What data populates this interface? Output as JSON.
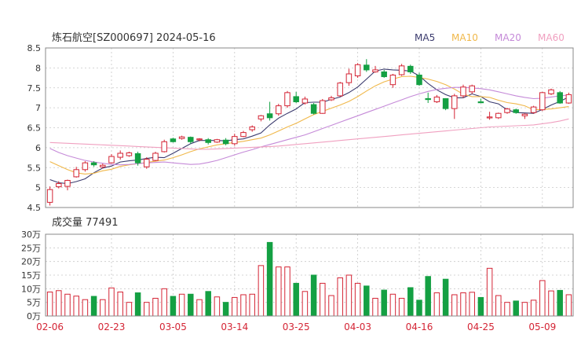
{
  "header": {
    "title": "炼石航空[SZ000697] 2024-05-16",
    "legend": [
      {
        "label": "MA5",
        "color": "#3b3b6e"
      },
      {
        "label": "MA10",
        "color": "#f0b84a"
      },
      {
        "label": "MA20",
        "color": "#c58ad8"
      },
      {
        "label": "MA60",
        "color": "#f0a0c0"
      }
    ]
  },
  "volume_label": "成交量 77491",
  "colors": {
    "up": "#d42535",
    "down": "#14a043",
    "grid": "#c8c8c8",
    "axis": "#333333",
    "date": "#d42535"
  },
  "chart_data": [
    {
      "type": "candlestick",
      "ylim": [
        4.5,
        8.5
      ],
      "y_ticks": [
        "8.5",
        "8",
        "7.5",
        "7",
        "6.5",
        "6",
        "5.5",
        "5",
        "4.5"
      ],
      "x_tick_labels": [
        {
          "index": 0,
          "label": "02-06"
        },
        {
          "index": 7,
          "label": "02-23"
        },
        {
          "index": 14,
          "label": "03-05"
        },
        {
          "index": 21,
          "label": "03-14"
        },
        {
          "index": 28,
          "label": "03-25"
        },
        {
          "index": 35,
          "label": "04-03"
        },
        {
          "index": 42,
          "label": "04-16"
        },
        {
          "index": 49,
          "label": "04-25"
        },
        {
          "index": 56,
          "label": "05-09"
        }
      ],
      "candles": [
        {
          "o": 4.63,
          "h": 5.03,
          "l": 4.55,
          "c": 4.95,
          "d": "up"
        },
        {
          "o": 5.02,
          "h": 5.16,
          "l": 4.98,
          "c": 5.1,
          "d": "up"
        },
        {
          "o": 5.03,
          "h": 5.2,
          "l": 4.93,
          "c": 5.18,
          "d": "up"
        },
        {
          "o": 5.27,
          "h": 5.52,
          "l": 5.25,
          "c": 5.45,
          "d": "up"
        },
        {
          "o": 5.45,
          "h": 5.66,
          "l": 5.4,
          "c": 5.62,
          "d": "up"
        },
        {
          "o": 5.62,
          "h": 5.66,
          "l": 5.52,
          "c": 5.57,
          "d": "down"
        },
        {
          "o": 5.52,
          "h": 5.6,
          "l": 5.48,
          "c": 5.56,
          "d": "up"
        },
        {
          "o": 5.62,
          "h": 5.84,
          "l": 5.6,
          "c": 5.78,
          "d": "up"
        },
        {
          "o": 5.76,
          "h": 5.93,
          "l": 5.7,
          "c": 5.86,
          "d": "up"
        },
        {
          "o": 5.8,
          "h": 5.9,
          "l": 5.77,
          "c": 5.87,
          "d": "up"
        },
        {
          "o": 5.85,
          "h": 5.9,
          "l": 5.55,
          "c": 5.62,
          "d": "down"
        },
        {
          "o": 5.52,
          "h": 5.76,
          "l": 5.47,
          "c": 5.71,
          "d": "up"
        },
        {
          "o": 5.68,
          "h": 5.9,
          "l": 5.66,
          "c": 5.86,
          "d": "up"
        },
        {
          "o": 5.9,
          "h": 6.2,
          "l": 5.88,
          "c": 6.15,
          "d": "up"
        },
        {
          "o": 6.22,
          "h": 6.25,
          "l": 6.13,
          "c": 6.15,
          "d": "down"
        },
        {
          "o": 6.23,
          "h": 6.3,
          "l": 6.2,
          "c": 6.27,
          "d": "up"
        },
        {
          "o": 6.26,
          "h": 6.28,
          "l": 6.1,
          "c": 6.15,
          "d": "down"
        },
        {
          "o": 6.2,
          "h": 6.24,
          "l": 6.16,
          "c": 6.22,
          "d": "up"
        },
        {
          "o": 6.2,
          "h": 6.24,
          "l": 6.08,
          "c": 6.13,
          "d": "down"
        },
        {
          "o": 6.14,
          "h": 6.22,
          "l": 6.12,
          "c": 6.2,
          "d": "up"
        },
        {
          "o": 6.19,
          "h": 6.24,
          "l": 6.06,
          "c": 6.1,
          "d": "down"
        },
        {
          "o": 6.1,
          "h": 6.35,
          "l": 6.05,
          "c": 6.28,
          "d": "up"
        },
        {
          "o": 6.28,
          "h": 6.42,
          "l": 6.26,
          "c": 6.38,
          "d": "up"
        },
        {
          "o": 6.45,
          "h": 6.56,
          "l": 6.4,
          "c": 6.52,
          "d": "up"
        },
        {
          "o": 6.72,
          "h": 6.82,
          "l": 6.66,
          "c": 6.8,
          "d": "up"
        },
        {
          "o": 6.85,
          "h": 7.15,
          "l": 6.68,
          "c": 6.75,
          "d": "down"
        },
        {
          "o": 6.85,
          "h": 7.1,
          "l": 6.8,
          "c": 7.05,
          "d": "up"
        },
        {
          "o": 7.05,
          "h": 7.42,
          "l": 7.0,
          "c": 7.38,
          "d": "up"
        },
        {
          "o": 7.28,
          "h": 7.4,
          "l": 7.12,
          "c": 7.15,
          "d": "down"
        },
        {
          "o": 7.12,
          "h": 7.28,
          "l": 7.08,
          "c": 7.22,
          "d": "up"
        },
        {
          "o": 7.08,
          "h": 7.12,
          "l": 6.83,
          "c": 6.86,
          "d": "down"
        },
        {
          "o": 6.86,
          "h": 7.22,
          "l": 6.85,
          "c": 7.18,
          "d": "up"
        },
        {
          "o": 7.2,
          "h": 7.3,
          "l": 7.17,
          "c": 7.25,
          "d": "up"
        },
        {
          "o": 7.3,
          "h": 7.65,
          "l": 7.28,
          "c": 7.62,
          "d": "up"
        },
        {
          "o": 7.63,
          "h": 7.98,
          "l": 7.55,
          "c": 7.85,
          "d": "up"
        },
        {
          "o": 7.8,
          "h": 8.12,
          "l": 7.75,
          "c": 8.08,
          "d": "up"
        },
        {
          "o": 8.07,
          "h": 8.22,
          "l": 7.9,
          "c": 7.95,
          "d": "down"
        },
        {
          "o": 7.9,
          "h": 8.05,
          "l": 7.88,
          "c": 7.95,
          "d": "up"
        },
        {
          "o": 7.9,
          "h": 7.95,
          "l": 7.75,
          "c": 7.78,
          "d": "down"
        },
        {
          "o": 7.58,
          "h": 7.85,
          "l": 7.5,
          "c": 7.82,
          "d": "up"
        },
        {
          "o": 7.83,
          "h": 8.1,
          "l": 7.8,
          "c": 8.05,
          "d": "up"
        },
        {
          "o": 8.04,
          "h": 8.08,
          "l": 7.85,
          "c": 7.9,
          "d": "down"
        },
        {
          "o": 7.82,
          "h": 7.88,
          "l": 7.55,
          "c": 7.58,
          "d": "down"
        },
        {
          "o": 7.23,
          "h": 7.38,
          "l": 7.12,
          "c": 7.22,
          "d": "down"
        },
        {
          "o": 7.15,
          "h": 7.32,
          "l": 7.12,
          "c": 7.27,
          "d": "up"
        },
        {
          "o": 7.23,
          "h": 7.24,
          "l": 6.94,
          "c": 6.98,
          "d": "down"
        },
        {
          "o": 6.98,
          "h": 7.35,
          "l": 6.72,
          "c": 7.3,
          "d": "up"
        },
        {
          "o": 7.3,
          "h": 7.58,
          "l": 7.25,
          "c": 7.52,
          "d": "up"
        },
        {
          "o": 7.4,
          "h": 7.58,
          "l": 7.35,
          "c": 7.55,
          "d": "up"
        },
        {
          "o": 7.15,
          "h": 7.23,
          "l": 7.12,
          "c": 7.14,
          "d": "down"
        },
        {
          "o": 6.76,
          "h": 6.9,
          "l": 6.7,
          "c": 6.77,
          "d": "up"
        },
        {
          "o": 6.75,
          "h": 6.88,
          "l": 6.72,
          "c": 6.86,
          "d": "up"
        },
        {
          "o": 6.88,
          "h": 7.0,
          "l": 6.85,
          "c": 6.97,
          "d": "up"
        },
        {
          "o": 6.95,
          "h": 6.98,
          "l": 6.85,
          "c": 6.88,
          "d": "down"
        },
        {
          "o": 6.8,
          "h": 6.86,
          "l": 6.72,
          "c": 6.84,
          "d": "up"
        },
        {
          "o": 6.88,
          "h": 7.05,
          "l": 6.85,
          "c": 7.02,
          "d": "up"
        },
        {
          "o": 6.95,
          "h": 7.4,
          "l": 6.92,
          "c": 7.38,
          "d": "up"
        },
        {
          "o": 7.35,
          "h": 7.48,
          "l": 7.32,
          "c": 7.45,
          "d": "up"
        },
        {
          "o": 7.38,
          "h": 7.42,
          "l": 7.1,
          "c": 7.12,
          "d": "down"
        },
        {
          "o": 7.12,
          "h": 7.38,
          "l": 7.1,
          "c": 7.33,
          "d": "up"
        }
      ],
      "series": [
        {
          "name": "MA5",
          "values": [
            5.2,
            5.12,
            5.1,
            5.15,
            5.22,
            5.37,
            5.49,
            5.54,
            5.64,
            5.67,
            5.69,
            5.73,
            5.76,
            5.75,
            5.86,
            5.98,
            6.1,
            6.18,
            6.18,
            6.18,
            6.17,
            6.2,
            6.22,
            6.29,
            6.37,
            6.57,
            6.74,
            6.86,
            6.97,
            7.13,
            7.14,
            7.14,
            7.21,
            7.27,
            7.38,
            7.52,
            7.72,
            7.92,
            7.97,
            7.95,
            7.94,
            7.92,
            7.8,
            7.61,
            7.45,
            7.33,
            7.25,
            7.25,
            7.35,
            7.28,
            7.15,
            7.1,
            6.95,
            6.88,
            6.87,
            6.86,
            6.96,
            7.07,
            7.16,
            7.27
          ]
        },
        {
          "name": "MA10",
          "values": [
            5.65,
            5.55,
            5.45,
            5.37,
            5.34,
            5.36,
            5.42,
            5.46,
            5.53,
            5.57,
            5.6,
            5.63,
            5.66,
            5.69,
            5.75,
            5.82,
            5.9,
            5.97,
            6.02,
            6.07,
            6.1,
            6.13,
            6.16,
            6.2,
            6.24,
            6.32,
            6.42,
            6.52,
            6.61,
            6.72,
            6.83,
            6.91,
            6.99,
            7.07,
            7.16,
            7.28,
            7.42,
            7.55,
            7.65,
            7.72,
            7.78,
            7.79,
            7.76,
            7.72,
            7.66,
            7.58,
            7.47,
            7.34,
            7.28,
            7.28,
            7.26,
            7.19,
            7.13,
            7.1,
            7.05,
            6.95,
            6.96,
            6.97,
            7.0,
            7.03
          ]
        },
        {
          "name": "MA20",
          "values": [
            5.98,
            5.88,
            5.8,
            5.74,
            5.68,
            5.64,
            5.61,
            5.58,
            5.57,
            5.58,
            5.6,
            5.62,
            5.63,
            5.64,
            5.62,
            5.6,
            5.58,
            5.59,
            5.63,
            5.68,
            5.75,
            5.82,
            5.89,
            5.95,
            6.02,
            6.08,
            6.14,
            6.2,
            6.26,
            6.32,
            6.4,
            6.48,
            6.56,
            6.64,
            6.72,
            6.8,
            6.88,
            6.96,
            7.04,
            7.12,
            7.2,
            7.28,
            7.35,
            7.41,
            7.46,
            7.49,
            7.51,
            7.51,
            7.5,
            7.48,
            7.45,
            7.4,
            7.35,
            7.3,
            7.26,
            7.23,
            7.24,
            7.27,
            7.3,
            7.32
          ]
        },
        {
          "name": "MA60",
          "values": [
            6.13,
            6.12,
            6.11,
            6.1,
            6.09,
            6.08,
            6.07,
            6.06,
            6.05,
            6.04,
            6.03,
            6.02,
            6.01,
            6.0,
            5.99,
            5.98,
            5.97,
            5.96,
            5.96,
            5.97,
            5.98,
            5.99,
            6.0,
            6.01,
            6.02,
            6.03,
            6.04,
            6.06,
            6.08,
            6.1,
            6.12,
            6.14,
            6.16,
            6.18,
            6.2,
            6.22,
            6.24,
            6.26,
            6.28,
            6.3,
            6.32,
            6.34,
            6.36,
            6.38,
            6.4,
            6.42,
            6.44,
            6.46,
            6.48,
            6.5,
            6.52,
            6.53,
            6.54,
            6.55,
            6.56,
            6.57,
            6.6,
            6.63,
            6.67,
            6.72
          ]
        }
      ]
    },
    {
      "type": "bar",
      "ylabel": "成交量",
      "ylim": [
        0,
        300000
      ],
      "y_ticks": [
        "30万",
        "25万",
        "20万",
        "15万",
        "10万",
        "5万",
        "0万"
      ],
      "values": [
        88000,
        93000,
        80000,
        73000,
        60000,
        72000,
        60000,
        103000,
        88000,
        50000,
        85000,
        50000,
        65000,
        100000,
        72000,
        80000,
        80000,
        60000,
        90000,
        70000,
        50000,
        68000,
        78000,
        80000,
        185000,
        270000,
        180000,
        180000,
        120000,
        90000,
        150000,
        120000,
        75000,
        140000,
        150000,
        120000,
        110000,
        65000,
        95000,
        80000,
        65000,
        104000,
        58000,
        145000,
        85000,
        135000,
        78000,
        85000,
        87000,
        68000,
        175000,
        75000,
        50000,
        55000,
        50000,
        58000,
        130000,
        92000,
        94000,
        78000
      ]
    }
  ]
}
